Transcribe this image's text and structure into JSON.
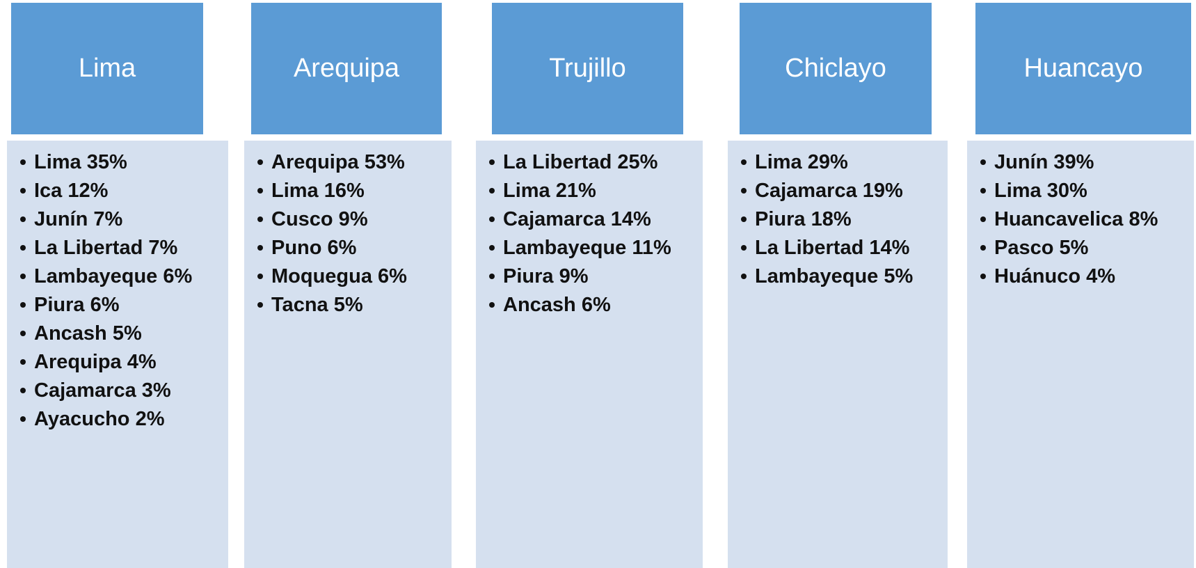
{
  "columns": [
    {
      "title": "Lima",
      "items": [
        "Lima 35%",
        "Ica 12%",
        "Junín 7%",
        "La Libertad 7%",
        "Lambayeque 6%",
        "Piura 6%",
        "Ancash 5%",
        "Arequipa 4%",
        "Cajamarca 3%",
        "Ayacucho 2%"
      ]
    },
    {
      "title": "Arequipa",
      "items": [
        "Arequipa 53%",
        "Lima 16%",
        "Cusco 9%",
        "Puno 6%",
        "Moquegua 6%",
        "Tacna 5%"
      ]
    },
    {
      "title": "Trujillo",
      "items": [
        "La Libertad 25%",
        "Lima 21%",
        "Cajamarca 14%",
        "Lambayeque 11%",
        "Piura 9%",
        "Ancash 6%"
      ]
    },
    {
      "title": "Chiclayo",
      "items": [
        "Lima 29%",
        "Cajamarca 19%",
        "Piura 18%",
        "La Libertad 14%",
        "Lambayeque 5%"
      ]
    },
    {
      "title": "Huancayo",
      "items": [
        "Junín 39%",
        "Lima 30%",
        "Huancavelica 8%",
        "Pasco 5%",
        "Huánuco 4%"
      ]
    }
  ]
}
